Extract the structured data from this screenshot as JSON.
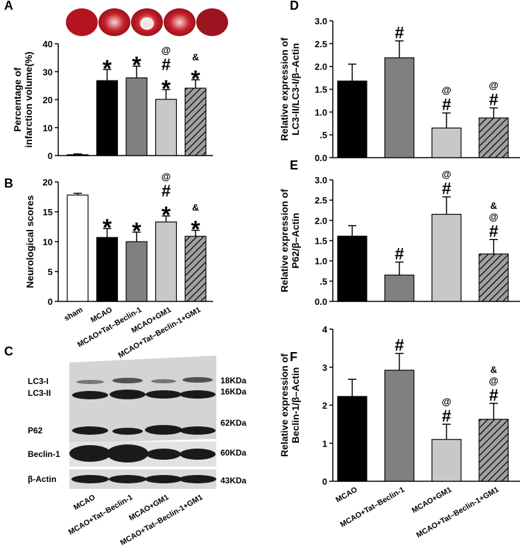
{
  "chart_data": [
    {
      "type": "bar",
      "panel_label": "A",
      "ylabel": [
        "Percentage of",
        "infarction volume(%)"
      ],
      "values": [
        0.3,
        26.8,
        27.8,
        20.1,
        24.1
      ],
      "errors": [
        0.3,
        4.0,
        4.2,
        3.5,
        3.0
      ],
      "colors": [
        "#ffffff",
        "#000000",
        "#808080",
        "#c8c8c8",
        "#a0a0a0"
      ],
      "hatch": [
        false,
        false,
        false,
        false,
        true
      ],
      "annotations": [
        [],
        [
          "*"
        ],
        [
          "*"
        ],
        [
          "@",
          "#",
          "*"
        ],
        [
          "&",
          "*"
        ]
      ],
      "ylim": [
        0,
        40
      ],
      "yticks": [
        0,
        10,
        20,
        30,
        40
      ]
    },
    {
      "type": "bar",
      "panel_label": "B",
      "ylabel": [
        "Neurological scores"
      ],
      "categories": [
        "sham",
        "MCAO",
        "MCAO+Tat–Beclin-1",
        "MCAO+GM1",
        "MCAO+Tat–Beclin-1+GM1"
      ],
      "values": [
        17.8,
        10.7,
        10.0,
        13.3,
        10.9
      ],
      "errors": [
        0.3,
        1.5,
        1.6,
        1.0,
        1.0
      ],
      "colors": [
        "#ffffff",
        "#000000",
        "#808080",
        "#c8c8c8",
        "#a0a0a0"
      ],
      "hatch": [
        false,
        false,
        false,
        false,
        true
      ],
      "annotations": [
        [],
        [
          "*"
        ],
        [
          "*"
        ],
        [
          "@",
          "#",
          "*"
        ],
        [
          "&",
          "*"
        ]
      ],
      "ylim": [
        0,
        20
      ],
      "yticks": [
        0,
        5,
        10,
        15,
        20
      ]
    },
    {
      "type": "bar",
      "panel_label": "D",
      "ylabel": [
        "Relative expression of",
        "LC3-II/LC3-I/β–Actin"
      ],
      "values": [
        1.68,
        2.19,
        0.65,
        0.87
      ],
      "errors": [
        0.37,
        0.37,
        0.33,
        0.22
      ],
      "colors": [
        "#000000",
        "#808080",
        "#c8c8c8",
        "#a0a0a0"
      ],
      "hatch": [
        false,
        false,
        false,
        true
      ],
      "annotations": [
        [],
        [
          "#"
        ],
        [
          "@",
          "#"
        ],
        [
          "@",
          "#"
        ]
      ],
      "ylim": [
        0,
        3
      ],
      "yticks": [
        {
          "value": 0,
          "label": "0.0"
        },
        {
          "value": 0.5,
          "label": ".5"
        },
        {
          "value": 1,
          "label": "1.0"
        },
        {
          "value": 1.5,
          "label": "1.5"
        },
        {
          "value": 2,
          "label": "2.0"
        },
        {
          "value": 2.5,
          "label": "2.5"
        },
        {
          "value": 3,
          "label": "3.0"
        }
      ]
    },
    {
      "type": "bar",
      "panel_label": "E",
      "ylabel": [
        "Relative expression of",
        "P62/β–Actin"
      ],
      "values": [
        1.61,
        0.65,
        2.15,
        1.17
      ],
      "errors": [
        0.26,
        0.32,
        0.43,
        0.36
      ],
      "colors": [
        "#000000",
        "#808080",
        "#c8c8c8",
        "#a0a0a0"
      ],
      "hatch": [
        false,
        false,
        false,
        true
      ],
      "annotations": [
        [],
        [
          "#"
        ],
        [
          "@",
          "#"
        ],
        [
          "&",
          "@",
          "#"
        ]
      ],
      "ylim": [
        0,
        3
      ],
      "yticks": [
        {
          "value": 0,
          "label": "0.0"
        },
        {
          "value": 0.5,
          "label": ".5"
        },
        {
          "value": 1,
          "label": "1.0"
        },
        {
          "value": 1.5,
          "label": "1.5"
        },
        {
          "value": 2,
          "label": "2.0"
        },
        {
          "value": 2.5,
          "label": "2.5"
        },
        {
          "value": 3,
          "label": "3.0"
        }
      ]
    },
    {
      "type": "bar",
      "panel_label": "F",
      "ylabel": [
        "Relative expression of",
        "Beclin-1/β–Actin"
      ],
      "categories": [
        "MCAO",
        "MCAO+Tat–Beclin-1",
        "MCAO+GM1",
        "MCAO+Tat–Beclin-1+GM1"
      ],
      "values": [
        2.23,
        2.92,
        1.1,
        1.63
      ],
      "errors": [
        0.45,
        0.44,
        0.4,
        0.42
      ],
      "colors": [
        "#000000",
        "#808080",
        "#c8c8c8",
        "#a0a0a0"
      ],
      "hatch": [
        false,
        false,
        false,
        true
      ],
      "annotations": [
        [],
        [
          "#"
        ],
        [
          "@",
          "#"
        ],
        [
          "&",
          "@",
          "#"
        ]
      ],
      "ylim": [
        0,
        4
      ],
      "yticks": [
        0,
        1,
        2,
        3,
        4
      ]
    }
  ],
  "blot": {
    "panel_label": "C",
    "bands": [
      "LC3-I",
      "LC3-II",
      "P62",
      "Beclin-1",
      "β-Actin"
    ],
    "sizes": [
      "18KDa",
      "16KDa",
      "62KDa",
      "60KDa",
      "43KDa"
    ],
    "lanes": [
      "MCAO",
      "MCAO+Tat–Beclin-1",
      "MCAO+GM1",
      "MCAO+Tat–Beclin-1+GM1"
    ]
  }
}
